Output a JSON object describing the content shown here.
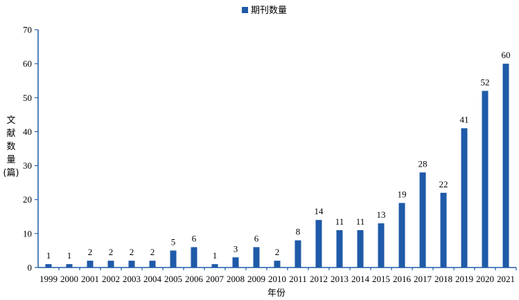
{
  "chart_data": {
    "type": "bar",
    "categories": [
      "1999",
      "2000",
      "2001",
      "2002",
      "2003",
      "2004",
      "2005",
      "2006",
      "2007",
      "2008",
      "2009",
      "2010",
      "2011",
      "2012",
      "2013",
      "2014",
      "2015",
      "2016",
      "2017",
      "2018",
      "2019",
      "2020",
      "2021"
    ],
    "series": [
      {
        "name": "期刊数量",
        "values": [
          1,
          1,
          2,
          2,
          2,
          2,
          5,
          6,
          1,
          3,
          6,
          2,
          8,
          14,
          11,
          11,
          13,
          19,
          28,
          22,
          41,
          52,
          60
        ]
      }
    ],
    "xlabel": "年份",
    "ylabel_chars": [
      "文",
      "献",
      "数",
      "量",
      "(篇)"
    ],
    "ylim": [
      0,
      70
    ],
    "yticks": [
      0,
      10,
      20,
      30,
      40,
      50,
      60,
      70
    ],
    "grid": false,
    "legend_position": "top-center",
    "bar_color": "#1f5aa8",
    "show_data_labels": true
  }
}
